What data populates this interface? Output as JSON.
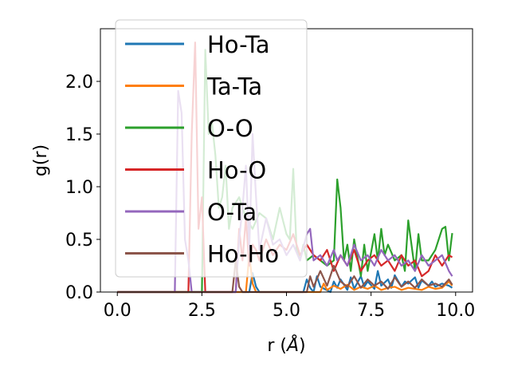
{
  "chart_data": {
    "type": "line",
    "xlabel_prefix": "r (",
    "xlabel_unit": "Å",
    "xlabel_suffix": ")",
    "ylabel": "g(r)",
    "xlim": [
      -0.5,
      10.5
    ],
    "ylim": [
      0.0,
      2.5
    ],
    "xticks": [
      0.0,
      2.5,
      5.0,
      7.5,
      10.0
    ],
    "xtick_labels": [
      "0.0",
      "2.5",
      "5.0",
      "7.5",
      "10.0"
    ],
    "yticks": [
      0.0,
      0.5,
      1.0,
      1.5,
      2.0
    ],
    "ytick_labels": [
      "0.0",
      "0.5",
      "1.0",
      "1.5",
      "2.0"
    ],
    "grid": false,
    "legend_position": "upper-left",
    "series": [
      {
        "name": "Ho-Ta",
        "color": "#1f77b4",
        "x": [
          0,
          3.9,
          4.0,
          4.1,
          4.2,
          5.5,
          5.6,
          5.7,
          5.8,
          5.9,
          6.0,
          6.3,
          6.4,
          6.5,
          6.6,
          6.8,
          6.9,
          7.0,
          7.2,
          7.3,
          7.4,
          7.6,
          7.7,
          7.8,
          8.0,
          8.1,
          8.2,
          8.4,
          8.5,
          8.6,
          8.8,
          8.9,
          9.0,
          9.2,
          9.3,
          9.4,
          9.6,
          9.7,
          9.8,
          9.9
        ],
        "y": [
          0,
          0,
          0.18,
          0.05,
          0,
          0,
          0.12,
          0.04,
          0,
          0.15,
          0.05,
          0,
          0.1,
          0.04,
          0.12,
          0.02,
          0.14,
          0.03,
          0.15,
          0.05,
          0.1,
          0.03,
          0.2,
          0.06,
          0.12,
          0.04,
          0.16,
          0.05,
          0.1,
          0.08,
          0.14,
          0.04,
          0.11,
          0.06,
          0.1,
          0.05,
          0.08,
          0.07,
          0.06,
          0.04
        ]
      },
      {
        "name": "Ta-Ta",
        "color": "#ff7f0e",
        "x": [
          0,
          3.8,
          3.9,
          4.0,
          4.1,
          6.0,
          6.1,
          6.2,
          6.4,
          6.6,
          6.8,
          7.0,
          7.2,
          7.4,
          7.6,
          7.8,
          8.0,
          8.2,
          8.4,
          8.6,
          8.8,
          9.0,
          9.2,
          9.4,
          9.6,
          9.8,
          9.9
        ],
        "y": [
          0,
          0,
          0.35,
          0.08,
          0,
          0,
          0.08,
          0.02,
          0.06,
          0.03,
          0.07,
          0.02,
          0.05,
          0.03,
          0.06,
          0.02,
          0.04,
          0.05,
          0.02,
          0.04,
          0.03,
          0.02,
          0.05,
          0.03,
          0.04,
          0.1,
          0.06
        ]
      },
      {
        "name": "O-O",
        "color": "#2ca02c",
        "x": [
          0,
          2.5,
          2.6,
          2.7,
          2.8,
          2.9,
          3.0,
          3.1,
          3.2,
          3.3,
          3.4,
          3.6,
          3.8,
          4.0,
          4.2,
          4.4,
          4.6,
          4.8,
          5.0,
          5.1,
          5.2,
          5.3,
          5.4,
          5.5,
          5.6,
          5.8,
          6.0,
          6.2,
          6.4,
          6.5,
          6.6,
          6.7,
          6.8,
          6.9,
          7.0,
          7.2,
          7.3,
          7.4,
          7.6,
          7.7,
          7.8,
          7.9,
          8.0,
          8.2,
          8.4,
          8.5,
          8.6,
          8.8,
          8.9,
          9.0,
          9.2,
          9.4,
          9.6,
          9.7,
          9.8,
          9.9
        ],
        "y": [
          0,
          0,
          2.3,
          1.5,
          1.6,
          1.3,
          0.8,
          0.9,
          1.2,
          0.6,
          0.8,
          0.9,
          0.7,
          0.6,
          0.75,
          0.7,
          0.5,
          0.8,
          0.55,
          0.5,
          1.17,
          0.4,
          0.3,
          0.45,
          0.3,
          0.35,
          0.3,
          0.25,
          0.3,
          1.07,
          0.8,
          0.3,
          0.45,
          0.2,
          0.5,
          0.15,
          0.45,
          0.2,
          0.55,
          0.3,
          0.6,
          0.35,
          0.45,
          0.3,
          0.35,
          0.2,
          0.68,
          0.2,
          0.55,
          0.3,
          0.3,
          0.4,
          0.6,
          0.62,
          0.3,
          0.56
        ]
      },
      {
        "name": "Ho-O",
        "color": "#d62728",
        "x": [
          0,
          2.1,
          2.2,
          2.3,
          2.4,
          2.5,
          2.6,
          3.5,
          3.6,
          3.7,
          3.8,
          3.9,
          4.0,
          4.1,
          4.2,
          4.4,
          4.6,
          4.8,
          5.0,
          5.2,
          5.4,
          5.6,
          5.8,
          6.0,
          6.2,
          6.4,
          6.6,
          6.8,
          7.0,
          7.2,
          7.4,
          7.6,
          7.8,
          8.0,
          8.2,
          8.4,
          8.6,
          8.8,
          9.0,
          9.2,
          9.4,
          9.6,
          9.8,
          9.9
        ],
        "y": [
          0,
          0,
          1.5,
          2.37,
          0.6,
          0.9,
          0,
          0,
          0.6,
          0.3,
          0.7,
          0.25,
          0.45,
          0.4,
          0.3,
          0.5,
          0.35,
          0.45,
          0.4,
          0.55,
          0.35,
          0.45,
          0.35,
          0.3,
          0.4,
          0.2,
          0.35,
          0.25,
          0.4,
          0.2,
          0.3,
          0.35,
          0.25,
          0.3,
          0.2,
          0.35,
          0.25,
          0.3,
          0.15,
          0.2,
          0.35,
          0.25,
          0.35,
          0.33
        ]
      },
      {
        "name": "O-Ta",
        "color": "#9467bd",
        "x": [
          0,
          1.7,
          1.8,
          1.9,
          2.0,
          2.1,
          2.2,
          3.5,
          3.6,
          3.7,
          3.8,
          3.9,
          4.0,
          4.1,
          4.2,
          4.4,
          4.6,
          4.8,
          5.0,
          5.2,
          5.4,
          5.6,
          5.7,
          5.8,
          6.0,
          6.2,
          6.4,
          6.5,
          6.6,
          6.8,
          7.0,
          7.2,
          7.4,
          7.6,
          7.8,
          8.0,
          8.2,
          8.4,
          8.6,
          8.8,
          9.0,
          9.2,
          9.4,
          9.6,
          9.8,
          9.9
        ],
        "y": [
          0,
          0,
          1.91,
          1.7,
          0.5,
          0.3,
          0,
          0,
          0.5,
          0.8,
          1.2,
          0.4,
          1.5,
          0.9,
          0.4,
          0.7,
          0.45,
          0.5,
          0.35,
          0.45,
          0.3,
          0.55,
          0.6,
          0.3,
          0.35,
          0.25,
          0.4,
          0.3,
          0.35,
          0.25,
          0.45,
          0.3,
          0.35,
          0.25,
          0.4,
          0.3,
          0.35,
          0.25,
          0.3,
          0.2,
          0.35,
          0.25,
          0.3,
          0.35,
          0.2,
          0.15
        ]
      },
      {
        "name": "Ho-Ho",
        "color": "#8c564b",
        "x": [
          0,
          3.4,
          3.5,
          3.6,
          3.7,
          5.6,
          5.7,
          5.8,
          6.0,
          6.2,
          6.4,
          6.6,
          6.8,
          7.0,
          7.2,
          7.4,
          7.6,
          7.8,
          8.0,
          8.2,
          8.4,
          8.6,
          8.8,
          9.0,
          9.2,
          9.4,
          9.6,
          9.8,
          9.9
        ],
        "y": [
          0,
          0,
          0.3,
          0.05,
          0,
          0,
          0.15,
          0.05,
          0.2,
          0.06,
          0.25,
          0.1,
          0.05,
          0.15,
          0.04,
          0.12,
          0.06,
          0.1,
          0.03,
          0.14,
          0.05,
          0.1,
          0.04,
          0.12,
          0.06,
          0.08,
          0.05,
          0.12,
          0.07
        ]
      }
    ]
  }
}
